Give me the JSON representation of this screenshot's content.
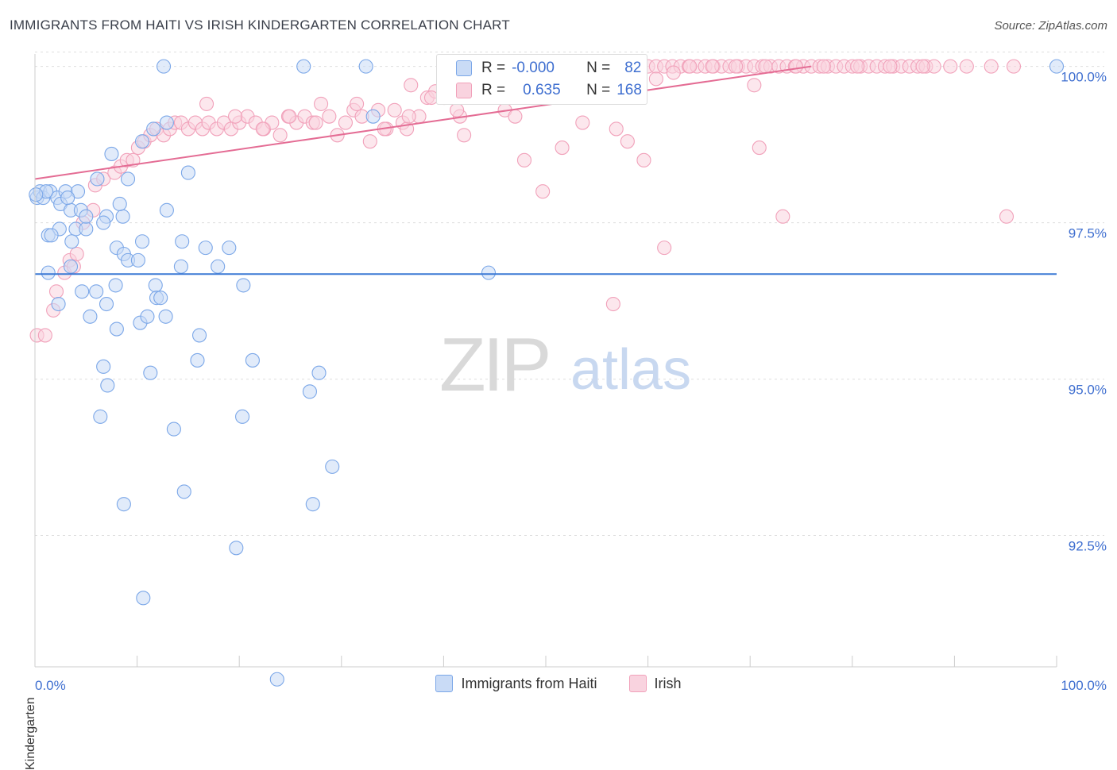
{
  "title": "IMMIGRANTS FROM HAITI VS IRISH KINDERGARTEN CORRELATION CHART",
  "source": "Source: ZipAtlas.com",
  "watermark": {
    "zip": "ZIP",
    "atlas": "atlas"
  },
  "colors": {
    "blue": "#7ba7e8",
    "blue_fill": "#c9dbf6",
    "blue_line": "#3a78d4",
    "pink": "#f1a1ba",
    "pink_fill": "#f9d3df",
    "pink_line": "#e46c94",
    "axis_text": "#3f6fd0"
  },
  "stats": {
    "r_label": "R =",
    "n_label": "N =",
    "rows": [
      {
        "r": "-0.000",
        "n": "82",
        "color": "#c9dbf6",
        "border": "#7ba7e8"
      },
      {
        "r": "0.635",
        "n": "168",
        "color": "#f9d3df",
        "border": "#f1a1ba"
      }
    ]
  },
  "legend": [
    {
      "label": "Immigrants from Haiti",
      "color": "#c9dbf6",
      "border": "#7ba7e8"
    },
    {
      "label": "Irish",
      "color": "#f9d3df",
      "border": "#f1a1ba"
    }
  ],
  "chart_data": {
    "type": "scatter",
    "xlabel": "",
    "ylabel": "Kindergarten",
    "xlim": [
      0,
      100
    ],
    "ylim": [
      90.4,
      100.3
    ],
    "x_tick_labels": [
      "0.0%",
      "100.0%"
    ],
    "y_ticks": [
      {
        "value": 100.0,
        "label": "100.0%"
      },
      {
        "value": 97.5,
        "label": "97.5%"
      },
      {
        "value": 95.0,
        "label": "95.0%"
      },
      {
        "value": 92.5,
        "label": "92.5%"
      }
    ],
    "series": [
      {
        "name": "Immigrants from Haiti",
        "trend": [
          [
            0,
            96.68
          ],
          [
            100,
            96.68
          ]
        ],
        "points": [
          [
            0.2,
            97.9
          ],
          [
            0.5,
            98.0
          ],
          [
            0.8,
            97.9
          ],
          [
            1.5,
            98.0
          ],
          [
            2.2,
            97.9
          ],
          [
            3.0,
            98.0
          ],
          [
            4.2,
            98.0
          ],
          [
            2.5,
            97.8
          ],
          [
            3.5,
            97.7
          ],
          [
            4.5,
            97.7
          ],
          [
            4.0,
            97.4
          ],
          [
            2.4,
            97.4
          ],
          [
            5.0,
            97.4
          ],
          [
            1.3,
            97.3
          ],
          [
            1.6,
            97.3
          ],
          [
            3.6,
            97.2
          ],
          [
            7.0,
            97.6
          ],
          [
            8.6,
            97.6
          ],
          [
            8.3,
            97.8
          ],
          [
            6.7,
            97.5
          ],
          [
            12.9,
            97.7
          ],
          [
            9.1,
            98.2
          ],
          [
            6.1,
            98.2
          ],
          [
            10.5,
            98.8
          ],
          [
            12.9,
            99.1
          ],
          [
            15.0,
            98.3
          ],
          [
            7.5,
            98.6
          ],
          [
            11.6,
            99.0
          ],
          [
            2.3,
            96.2
          ],
          [
            1.3,
            96.7
          ],
          [
            3.5,
            96.8
          ],
          [
            4.6,
            96.4
          ],
          [
            6.0,
            96.4
          ],
          [
            7.0,
            96.2
          ],
          [
            7.9,
            96.5
          ],
          [
            11.8,
            96.5
          ],
          [
            11.9,
            96.3
          ],
          [
            12.3,
            96.3
          ],
          [
            14.3,
            96.8
          ],
          [
            17.9,
            96.8
          ],
          [
            20.4,
            96.5
          ],
          [
            8.0,
            97.1
          ],
          [
            8.7,
            97.0
          ],
          [
            9.1,
            96.9
          ],
          [
            10.1,
            96.9
          ],
          [
            10.5,
            97.2
          ],
          [
            14.4,
            97.2
          ],
          [
            16.7,
            97.1
          ],
          [
            19.0,
            97.1
          ],
          [
            5.4,
            96.0
          ],
          [
            8.0,
            95.8
          ],
          [
            10.3,
            95.9
          ],
          [
            11.0,
            96.0
          ],
          [
            12.8,
            96.0
          ],
          [
            16.1,
            95.7
          ],
          [
            15.9,
            95.3
          ],
          [
            21.3,
            95.3
          ],
          [
            6.7,
            95.2
          ],
          [
            7.1,
            94.9
          ],
          [
            11.3,
            95.1
          ],
          [
            26.9,
            94.8
          ],
          [
            27.8,
            95.1
          ],
          [
            6.4,
            94.4
          ],
          [
            13.6,
            94.2
          ],
          [
            20.3,
            94.4
          ],
          [
            29.1,
            93.6
          ],
          [
            14.6,
            93.2
          ],
          [
            8.7,
            93.0
          ],
          [
            27.2,
            93.0
          ],
          [
            19.7,
            92.3
          ],
          [
            10.6,
            91.5
          ],
          [
            23.7,
            90.2
          ],
          [
            12.6,
            100.0
          ],
          [
            26.3,
            100.0
          ],
          [
            32.4,
            100.0
          ],
          [
            100.0,
            100.0
          ],
          [
            33.1,
            99.2
          ],
          [
            44.4,
            96.7
          ],
          [
            5.0,
            97.6
          ],
          [
            3.2,
            97.9
          ],
          [
            1.1,
            98.0
          ],
          [
            0.1,
            97.95
          ]
        ]
      },
      {
        "name": "Irish",
        "trend": [
          [
            0,
            98.2
          ],
          [
            76,
            100.0
          ]
        ],
        "points": [
          [
            0.2,
            95.7
          ],
          [
            1.0,
            95.7
          ],
          [
            1.8,
            96.1
          ],
          [
            2.1,
            96.4
          ],
          [
            2.9,
            96.7
          ],
          [
            3.4,
            96.9
          ],
          [
            4.1,
            97.0
          ],
          [
            3.8,
            96.8
          ],
          [
            4.7,
            97.5
          ],
          [
            5.7,
            97.7
          ],
          [
            5.9,
            98.1
          ],
          [
            6.7,
            98.2
          ],
          [
            7.8,
            98.3
          ],
          [
            8.4,
            98.4
          ],
          [
            9.0,
            98.5
          ],
          [
            9.6,
            98.5
          ],
          [
            10.1,
            98.7
          ],
          [
            10.7,
            98.8
          ],
          [
            11.3,
            98.9
          ],
          [
            11.9,
            99.0
          ],
          [
            12.6,
            98.9
          ],
          [
            13.2,
            99.0
          ],
          [
            13.7,
            99.1
          ],
          [
            14.3,
            99.1
          ],
          [
            15.0,
            99.0
          ],
          [
            15.7,
            99.1
          ],
          [
            16.4,
            99.0
          ],
          [
            17.0,
            99.1
          ],
          [
            17.8,
            99.0
          ],
          [
            18.5,
            99.1
          ],
          [
            19.2,
            99.0
          ],
          [
            20.0,
            99.1
          ],
          [
            20.8,
            99.2
          ],
          [
            21.6,
            99.1
          ],
          [
            22.4,
            99.0
          ],
          [
            23.2,
            99.1
          ],
          [
            24.0,
            98.9
          ],
          [
            24.8,
            99.2
          ],
          [
            25.6,
            99.1
          ],
          [
            26.4,
            99.2
          ],
          [
            27.2,
            99.1
          ],
          [
            28.0,
            99.4
          ],
          [
            28.8,
            99.2
          ],
          [
            29.6,
            98.9
          ],
          [
            30.4,
            99.1
          ],
          [
            31.2,
            99.3
          ],
          [
            32.0,
            99.2
          ],
          [
            32.8,
            98.8
          ],
          [
            33.6,
            99.3
          ],
          [
            34.4,
            99.0
          ],
          [
            35.2,
            99.3
          ],
          [
            36.0,
            99.1
          ],
          [
            36.8,
            99.7
          ],
          [
            37.6,
            99.2
          ],
          [
            38.4,
            99.5
          ],
          [
            39.2,
            99.6
          ],
          [
            40.0,
            99.5
          ],
          [
            40.8,
            99.8
          ],
          [
            41.6,
            99.2
          ],
          [
            42.4,
            99.6
          ],
          [
            43.2,
            99.8
          ],
          [
            44.0,
            99.8
          ],
          [
            44.8,
            99.9
          ],
          [
            45.6,
            100.0
          ],
          [
            46.4,
            100.0
          ],
          [
            47.2,
            99.9
          ],
          [
            48.0,
            100.0
          ],
          [
            48.8,
            100.0
          ],
          [
            49.6,
            100.0
          ],
          [
            50.4,
            99.9
          ],
          [
            51.2,
            100.0
          ],
          [
            52.0,
            100.0
          ],
          [
            52.8,
            100.0
          ],
          [
            53.6,
            100.0
          ],
          [
            54.4,
            100.0
          ],
          [
            55.2,
            100.0
          ],
          [
            56.0,
            100.0
          ],
          [
            56.8,
            100.0
          ],
          [
            57.6,
            100.0
          ],
          [
            58.4,
            100.0
          ],
          [
            59.2,
            100.0
          ],
          [
            60.0,
            100.0
          ],
          [
            60.8,
            100.0
          ],
          [
            61.6,
            100.0
          ],
          [
            62.4,
            100.0
          ],
          [
            63.2,
            100.0
          ],
          [
            64.0,
            100.0
          ],
          [
            64.8,
            100.0
          ],
          [
            65.6,
            100.0
          ],
          [
            66.4,
            100.0
          ],
          [
            67.2,
            100.0
          ],
          [
            68.0,
            100.0
          ],
          [
            68.8,
            100.0
          ],
          [
            69.6,
            100.0
          ],
          [
            70.4,
            100.0
          ],
          [
            71.2,
            100.0
          ],
          [
            72.0,
            100.0
          ],
          [
            72.8,
            100.0
          ],
          [
            73.6,
            100.0
          ],
          [
            74.4,
            100.0
          ],
          [
            75.2,
            100.0
          ],
          [
            76.0,
            100.0
          ],
          [
            76.8,
            100.0
          ],
          [
            77.6,
            100.0
          ],
          [
            78.4,
            100.0
          ],
          [
            79.2,
            100.0
          ],
          [
            80.0,
            100.0
          ],
          [
            80.8,
            100.0
          ],
          [
            81.6,
            100.0
          ],
          [
            82.4,
            100.0
          ],
          [
            83.2,
            100.0
          ],
          [
            84.0,
            100.0
          ],
          [
            84.8,
            100.0
          ],
          [
            85.6,
            100.0
          ],
          [
            86.4,
            100.0
          ],
          [
            87.2,
            100.0
          ],
          [
            88.0,
            100.0
          ],
          [
            89.6,
            100.0
          ],
          [
            91.2,
            100.0
          ],
          [
            93.6,
            100.0
          ],
          [
            95.8,
            100.0
          ],
          [
            70.4,
            99.7
          ],
          [
            40.1,
            99.5
          ],
          [
            46.0,
            99.3
          ],
          [
            47.0,
            99.2
          ],
          [
            53.6,
            99.1
          ],
          [
            56.9,
            99.0
          ],
          [
            58.0,
            98.8
          ],
          [
            51.6,
            98.7
          ],
          [
            42.0,
            98.9
          ],
          [
            36.4,
            99.0
          ],
          [
            47.9,
            98.5
          ],
          [
            59.6,
            98.5
          ],
          [
            70.9,
            98.7
          ],
          [
            73.2,
            97.6
          ],
          [
            95.1,
            97.6
          ],
          [
            61.6,
            97.1
          ],
          [
            56.6,
            96.2
          ],
          [
            49.7,
            98.0
          ],
          [
            16.8,
            99.4
          ],
          [
            19.6,
            99.2
          ],
          [
            22.3,
            99.0
          ],
          [
            24.9,
            99.2
          ],
          [
            27.5,
            99.1
          ],
          [
            31.5,
            99.4
          ],
          [
            34.2,
            99.0
          ],
          [
            36.6,
            99.2
          ],
          [
            38.8,
            99.5
          ],
          [
            41.3,
            99.3
          ],
          [
            43.5,
            99.6
          ],
          [
            45.9,
            99.7
          ],
          [
            48.4,
            99.8
          ],
          [
            50.8,
            99.8
          ],
          [
            53.2,
            99.9
          ],
          [
            55.7,
            100.0
          ],
          [
            58.2,
            99.9
          ],
          [
            60.8,
            99.8
          ],
          [
            62.5,
            99.9
          ],
          [
            64.1,
            100.0
          ],
          [
            66.3,
            100.0
          ],
          [
            68.6,
            100.0
          ],
          [
            71.5,
            100.0
          ],
          [
            74.5,
            100.0
          ],
          [
            77.2,
            100.0
          ],
          [
            80.5,
            100.0
          ],
          [
            83.7,
            100.0
          ],
          [
            86.9,
            100.0
          ]
        ]
      }
    ]
  }
}
